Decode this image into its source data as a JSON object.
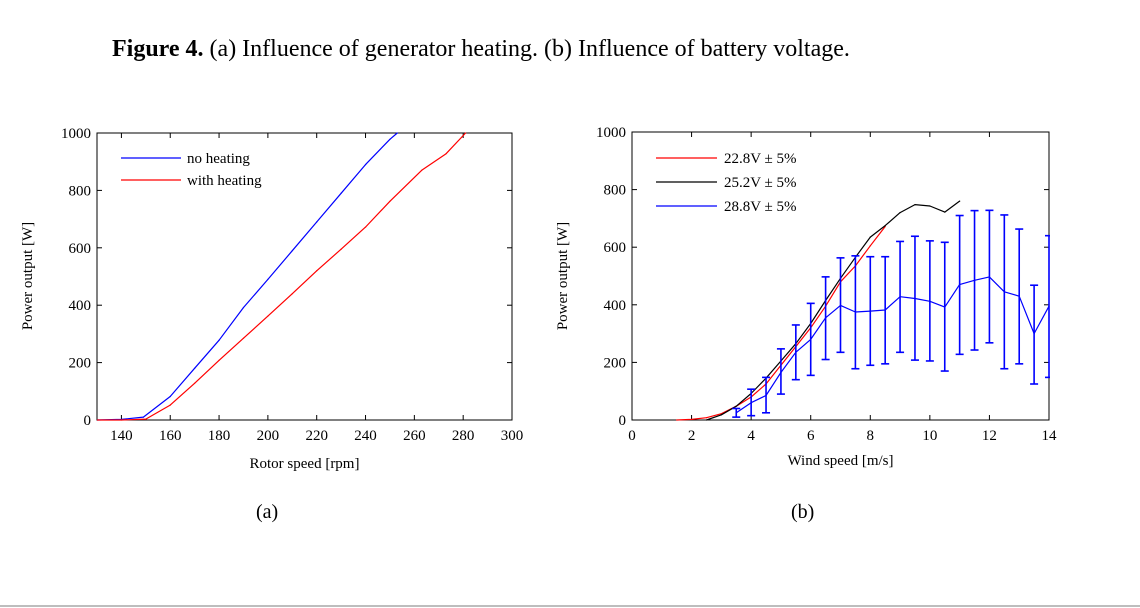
{
  "caption": {
    "prefix": "Figure 4.",
    "text": " (a) Influence of generator heating. (b) Influence of battery voltage."
  },
  "subfigure_labels": [
    "(a)",
    "(b)"
  ],
  "chart_data": [
    {
      "type": "line",
      "id": "a",
      "title": "",
      "xlabel": "Rotor speed [rpm]",
      "ylabel": "Power output [W]",
      "xlim": [
        130,
        300
      ],
      "ylim": [
        0,
        1000
      ],
      "xticks": [
        140,
        160,
        180,
        200,
        220,
        240,
        260,
        280,
        300
      ],
      "yticks": [
        0,
        200,
        400,
        600,
        800,
        1000
      ],
      "grid": false,
      "legend": "top-left",
      "series": [
        {
          "name": "no heating",
          "color": "#0000ff",
          "x": [
            130,
            140,
            149,
            160,
            170,
            180,
            190,
            200,
            210,
            220,
            230,
            240,
            250,
            253
          ],
          "y": [
            0,
            2,
            10,
            82,
            180,
            278,
            392,
            490,
            590,
            690,
            790,
            890,
            978,
            1000
          ]
        },
        {
          "name": "with heating",
          "color": "#ff0000",
          "x": [
            130,
            140,
            150,
            160,
            170,
            180,
            190,
            200,
            210,
            220,
            230,
            240,
            250,
            263,
            273,
            281
          ],
          "y": [
            0,
            0,
            3,
            52,
            128,
            208,
            285,
            362,
            440,
            520,
            595,
            672,
            762,
            870,
            928,
            1000
          ]
        }
      ]
    },
    {
      "type": "line",
      "id": "b",
      "title": "",
      "xlabel": "Wind speed [m/s]",
      "ylabel": "Power output [W]",
      "xlim": [
        0,
        14
      ],
      "ylim": [
        0,
        1000
      ],
      "xticks": [
        0,
        2,
        4,
        6,
        8,
        10,
        12,
        14
      ],
      "yticks": [
        0,
        200,
        400,
        600,
        800,
        1000
      ],
      "grid": false,
      "legend": "top-left",
      "series": [
        {
          "name": "22.8V ± 5%",
          "color": "#ff0000",
          "x": [
            1.5,
            2,
            2.5,
            3,
            3.5,
            4,
            4.5,
            5,
            5.5,
            6,
            6.5,
            7,
            7.5,
            8,
            8.5
          ],
          "y": [
            0,
            2,
            8,
            22,
            48,
            80,
            125,
            190,
            255,
            320,
            395,
            480,
            535,
            605,
            672
          ]
        },
        {
          "name": "25.2V ± 5%",
          "color": "#000000",
          "x": [
            2.5,
            3,
            3.5,
            4,
            4.5,
            5,
            5.5,
            6,
            6.5,
            7,
            7.5,
            8,
            8.5,
            9,
            9.5,
            10,
            10.5,
            11
          ],
          "y": [
            0,
            18,
            48,
            92,
            145,
            205,
            265,
            335,
            415,
            492,
            565,
            635,
            675,
            720,
            748,
            743,
            722,
            760
          ]
        },
        {
          "name": "28.8V ± 5%",
          "color": "#0000ff",
          "x": [
            3.5,
            4,
            4.5,
            5,
            5.5,
            6,
            6.5,
            7,
            7.5,
            8,
            8.5,
            9,
            9.5,
            10,
            10.5,
            11,
            11.5,
            12,
            12.5,
            13,
            13.5,
            14
          ],
          "y": [
            25,
            60,
            85,
            165,
            235,
            280,
            355,
            398,
            375,
            378,
            382,
            428,
            422,
            412,
            392,
            470,
            485,
            497,
            445,
            430,
            300,
            395
          ],
          "err_low": [
            10,
            15,
            25,
            90,
            140,
            155,
            210,
            235,
            178,
            190,
            195,
            235,
            208,
            205,
            170,
            228,
            243,
            268,
            178,
            195,
            125,
            148
          ],
          "err_high": [
            40,
            107,
            148,
            247,
            330,
            405,
            497,
            563,
            570,
            567,
            567,
            620,
            638,
            622,
            617,
            710,
            727,
            728,
            712,
            663,
            468,
            640
          ]
        }
      ]
    }
  ]
}
